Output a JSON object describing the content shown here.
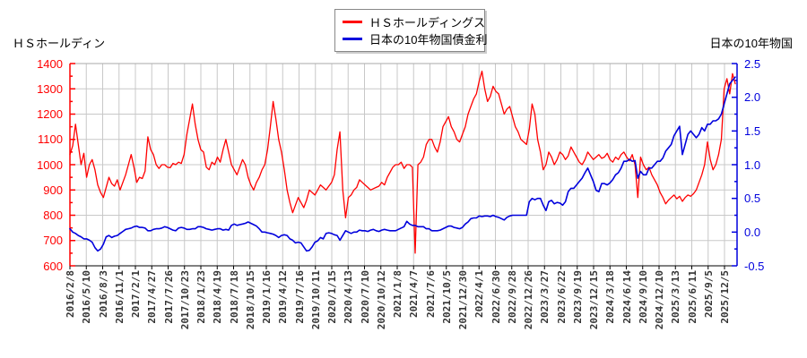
{
  "titles": {
    "left_axis_title": "ＨＳホールディン",
    "right_axis_title": "日本の10年物国"
  },
  "legend": {
    "items": [
      {
        "label": "ＨＳホールディングス",
        "color": "#ff0000"
      },
      {
        "label": "日本の10年物国債金利",
        "color": "#0000dd"
      }
    ]
  },
  "chart_data": {
    "type": "line",
    "title": "",
    "grid": true,
    "x_tick_labels": [
      "2016/2/8",
      "2016/5/10",
      "2016/8/3",
      "2016/11/1",
      "2017/2/1",
      "2017/4/27",
      "2017/7/26",
      "2017/10/23",
      "2018/1/23",
      "2018/4/19",
      "2018/7/18",
      "2018/10/15",
      "2019/1/16",
      "2019/4/12",
      "2019/7/16",
      "2019/10/11",
      "2020/1/15",
      "2020/4/13",
      "2020/7/10",
      "2020/10/12",
      "2021/1/8",
      "2021/4/7",
      "2021/7/6",
      "2021/10/5",
      "2021/12/30",
      "2022/4/1",
      "2022/6/30",
      "2022/9/28",
      "2022/12/26",
      "2023/3/27",
      "2023/6/22",
      "2023/9/19",
      "2023/12/15",
      "2024/3/18",
      "2024/6/14",
      "2024/9/10",
      "2024/12/10",
      "2025/3/13",
      "2025/6/11",
      "2025/9/5",
      "2025/12/5"
    ],
    "left_axis": {
      "title": "ＨＳホールディン",
      "color": "#ff0000",
      "min": 600,
      "max": 1400,
      "tick_step": 100,
      "minor_step": 50,
      "tick_labels": [
        "600",
        "700",
        "800",
        "900",
        "1000",
        "1100",
        "1200",
        "1300",
        "1400"
      ]
    },
    "right_axis": {
      "title": "日本の10年物国",
      "color": "#0000dd",
      "min": -0.5,
      "max": 2.5,
      "tick_step": 0.5,
      "minor_step": 0.25,
      "tick_labels": [
        "-0.5",
        "0.0",
        "0.5",
        "1.0",
        "1.5",
        "2.0",
        "2.5"
      ]
    },
    "grid_color": "#c8c8c8",
    "series": [
      {
        "name": "ＨＳホールディングス",
        "axis": "left",
        "color": "#ff0000",
        "width": 1.3,
        "values": [
          1040,
          1075,
          1160,
          1080,
          1000,
          1045,
          950,
          1000,
          1020,
          980,
          920,
          890,
          870,
          910,
          950,
          925,
          915,
          940,
          900,
          930,
          960,
          1000,
          1040,
          990,
          930,
          950,
          945,
          975,
          1110,
          1060,
          1040,
          1000,
          985,
          1000,
          1000,
          990,
          988,
          1005,
          1000,
          1010,
          1005,
          1040,
          1120,
          1180,
          1240,
          1160,
          1100,
          1060,
          1050,
          990,
          980,
          1010,
          1000,
          1030,
          1010,
          1060,
          1100,
          1050,
          1000,
          980,
          960,
          990,
          1020,
          1000,
          950,
          920,
          900,
          930,
          950,
          980,
          1000,
          1060,
          1150,
          1250,
          1180,
          1100,
          1050,
          980,
          900,
          850,
          810,
          840,
          870,
          850,
          830,
          860,
          900,
          890,
          880,
          900,
          920,
          910,
          900,
          915,
          930,
          960,
          1060,
          1130,
          900,
          790,
          870,
          880,
          900,
          910,
          940,
          930,
          920,
          910,
          900,
          905,
          910,
          915,
          930,
          920,
          950,
          970,
          990,
          1000,
          1000,
          1010,
          985,
          1000,
          1000,
          990,
          650,
          1000,
          1010,
          1030,
          1080,
          1100,
          1100,
          1070,
          1050,
          1090,
          1150,
          1170,
          1190,
          1150,
          1130,
          1100,
          1090,
          1120,
          1150,
          1200,
          1230,
          1260,
          1280,
          1330,
          1370,
          1300,
          1250,
          1270,
          1310,
          1290,
          1280,
          1240,
          1200,
          1220,
          1230,
          1190,
          1150,
          1130,
          1100,
          1090,
          1080,
          1140,
          1240,
          1200,
          1100,
          1050,
          980,
          1000,
          1050,
          1030,
          1000,
          1020,
          1050,
          1040,
          1020,
          1035,
          1070,
          1050,
          1030,
          1010,
          1000,
          1020,
          1050,
          1035,
          1020,
          1030,
          1040,
          1025,
          1030,
          1045,
          1020,
          1010,
          1030,
          1020,
          1040,
          1050,
          1030,
          1015,
          1040,
          1000,
          870,
          1030,
          1000,
          980,
          990,
          960,
          940,
          920,
          890,
          870,
          845,
          860,
          870,
          880,
          865,
          875,
          855,
          870,
          880,
          875,
          885,
          900,
          930,
          960,
          1000,
          1090,
          1020,
          980,
          1000,
          1040,
          1100,
          1300,
          1340,
          1280,
          1360,
          1320
        ]
      },
      {
        "name": "日本の10年物国債金利",
        "axis": "right",
        "color": "#0000dd",
        "width": 1.6,
        "values": [
          0.05,
          0.0,
          -0.02,
          -0.05,
          -0.07,
          -0.1,
          -0.1,
          -0.12,
          -0.15,
          -0.23,
          -0.28,
          -0.25,
          -0.18,
          -0.07,
          -0.05,
          -0.08,
          -0.06,
          -0.05,
          -0.02,
          0.01,
          0.04,
          0.05,
          0.06,
          0.08,
          0.09,
          0.07,
          0.07,
          0.06,
          0.02,
          0.02,
          0.04,
          0.05,
          0.05,
          0.06,
          0.08,
          0.07,
          0.05,
          0.03,
          0.02,
          0.06,
          0.07,
          0.06,
          0.04,
          0.04,
          0.05,
          0.05,
          0.08,
          0.08,
          0.07,
          0.05,
          0.04,
          0.03,
          0.04,
          0.05,
          0.05,
          0.03,
          0.04,
          0.03,
          0.1,
          0.12,
          0.1,
          0.11,
          0.12,
          0.13,
          0.15,
          0.13,
          0.11,
          0.09,
          0.05,
          0.0,
          0.0,
          -0.01,
          -0.02,
          -0.03,
          -0.05,
          -0.08,
          -0.05,
          -0.04,
          -0.05,
          -0.1,
          -0.12,
          -0.16,
          -0.15,
          -0.16,
          -0.22,
          -0.28,
          -0.27,
          -0.22,
          -0.15,
          -0.13,
          -0.08,
          -0.1,
          -0.02,
          -0.01,
          -0.02,
          -0.04,
          -0.05,
          -0.12,
          -0.05,
          0.02,
          0.0,
          -0.02,
          0.0,
          0.0,
          0.03,
          0.02,
          0.02,
          0.01,
          0.03,
          0.04,
          0.02,
          0.01,
          0.03,
          0.04,
          0.03,
          0.02,
          0.02,
          0.02,
          0.04,
          0.06,
          0.08,
          0.16,
          0.12,
          0.1,
          0.1,
          0.08,
          0.08,
          0.08,
          0.05,
          0.05,
          0.02,
          0.02,
          0.02,
          0.03,
          0.05,
          0.07,
          0.09,
          0.09,
          0.07,
          0.06,
          0.05,
          0.07,
          0.12,
          0.15,
          0.2,
          0.21,
          0.21,
          0.24,
          0.23,
          0.24,
          0.24,
          0.23,
          0.25,
          0.23,
          0.22,
          0.2,
          0.18,
          0.22,
          0.24,
          0.25,
          0.25,
          0.25,
          0.25,
          0.25,
          0.25,
          0.45,
          0.5,
          0.48,
          0.5,
          0.5,
          0.4,
          0.32,
          0.45,
          0.47,
          0.42,
          0.44,
          0.43,
          0.4,
          0.45,
          0.6,
          0.65,
          0.65,
          0.7,
          0.75,
          0.8,
          0.88,
          0.95,
          0.85,
          0.75,
          0.62,
          0.6,
          0.72,
          0.72,
          0.7,
          0.73,
          0.78,
          0.85,
          0.88,
          0.95,
          1.05,
          1.05,
          1.08,
          1.05,
          1.06,
          0.8,
          0.9,
          0.85,
          0.85,
          0.95,
          0.95,
          1.0,
          1.05,
          1.05,
          1.1,
          1.2,
          1.25,
          1.3,
          1.43,
          1.5,
          1.57,
          1.15,
          1.3,
          1.45,
          1.5,
          1.45,
          1.4,
          1.45,
          1.55,
          1.5,
          1.6,
          1.6,
          1.65,
          1.65,
          1.68,
          1.75,
          1.9,
          2.05,
          2.2,
          2.25,
          2.3
        ]
      }
    ]
  }
}
